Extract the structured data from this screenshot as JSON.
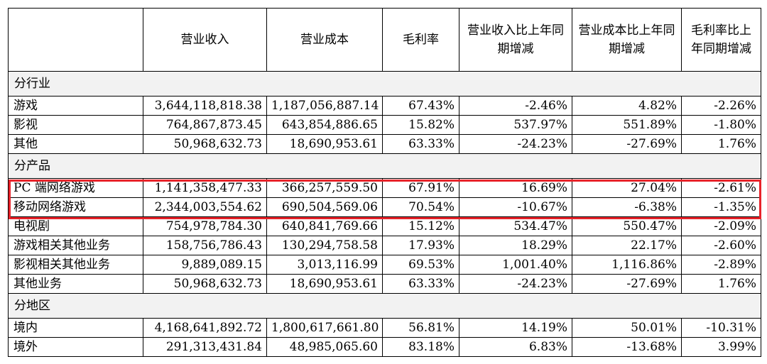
{
  "headers": [
    "",
    "营业收入",
    "营业成本",
    "毛利率",
    "营业收入比上年同期增减",
    "营业成本比上年同期增减",
    "毛利率比上年同期增减"
  ],
  "sections": [
    {
      "title": "分行业",
      "rows": [
        [
          "游戏",
          "3,644,118,818.38",
          "1,187,056,887.14",
          "67.43%",
          "-2.46%",
          "4.82%",
          "-2.26%"
        ],
        [
          "影视",
          "764,867,873.45",
          "643,854,886.65",
          "15.82%",
          "537.97%",
          "551.89%",
          "-1.80%"
        ],
        [
          "其他",
          "50,968,632.73",
          "18,690,953.61",
          "63.33%",
          "-24.23%",
          "-27.69%",
          "1.76%"
        ]
      ]
    },
    {
      "title": "分产品",
      "rows": [
        [
          "PC 端网络游戏",
          "1,141,358,477.33",
          "366,257,559.50",
          "67.91%",
          "16.69%",
          "27.04%",
          "-2.61%"
        ],
        [
          "移动网络游戏",
          "2,344,003,554.62",
          "690,504,569.06",
          "70.54%",
          "-10.67%",
          "-6.38%",
          "-1.35%"
        ],
        [
          "电视剧",
          "754,978,784.30",
          "640,841,769.66",
          "15.12%",
          "534.47%",
          "550.47%",
          "-2.09%"
        ],
        [
          "游戏相关其他业务",
          "158,756,786.43",
          "130,294,758.58",
          "17.93%",
          "18.29%",
          "22.17%",
          "-2.60%"
        ],
        [
          "影视相关其他业务",
          "9,889,089.15",
          "3,013,116.99",
          "69.53%",
          "1,001.40%",
          "1,116.86%",
          "-2.89%"
        ],
        [
          "其他业务",
          "50,968,632.73",
          "18,690,953.61",
          "63.33%",
          "-24.23%",
          "-27.69%",
          "1.76%"
        ]
      ]
    },
    {
      "title": "分地区",
      "rows": [
        [
          "境内",
          "4,168,641,892.72",
          "1,800,617,661.80",
          "56.81%",
          "14.19%",
          "50.01%",
          "-10.31%"
        ],
        [
          "境外",
          "291,313,431.84",
          "48,985,065.60",
          "83.18%",
          "6.83%",
          "-13.68%",
          "3.99%"
        ]
      ]
    }
  ],
  "highlight_color": "#e8232a"
}
